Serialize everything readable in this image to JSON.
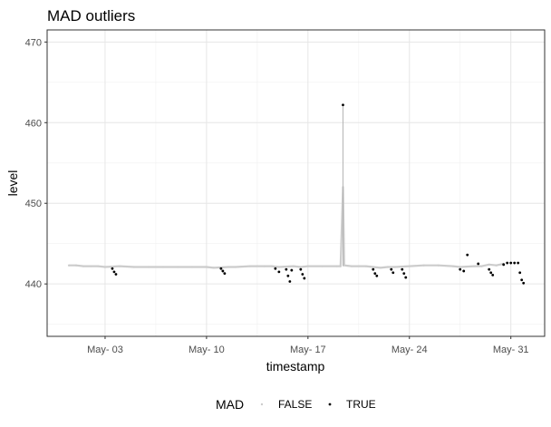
{
  "chart_data": {
    "type": "scatter",
    "title": "MAD outliers",
    "xlabel": "timestamp",
    "ylabel": "level",
    "x_domain": [
      "2019-04-29T00:00",
      "2019-06-02T08:00"
    ],
    "ylim": [
      433.5,
      471.5
    ],
    "x_ticks": [
      {
        "date": "2019-05-03",
        "label": "May- 03"
      },
      {
        "date": "2019-05-10",
        "label": "May- 10"
      },
      {
        "date": "2019-05-17",
        "label": "May- 17"
      },
      {
        "date": "2019-05-24",
        "label": "May- 24"
      },
      {
        "date": "2019-05-31",
        "label": "May- 31"
      }
    ],
    "y_ticks": [
      440,
      450,
      460,
      470
    ],
    "y_ticks_minor": [
      435,
      445,
      455,
      465
    ],
    "grid": true,
    "legend": {
      "title": "MAD",
      "position": "bottom",
      "items": [
        {
          "label": "FALSE",
          "color": "#cccccc"
        },
        {
          "label": "TRUE",
          "color": "#000000"
        }
      ]
    },
    "colors": {
      "FALSE": "#cccccc",
      "TRUE": "#000000"
    },
    "series": [
      {
        "name": "FALSE",
        "points": [
          [
            "2019-04-30T12:00",
            442.3
          ],
          [
            "2019-05-01T00:00",
            442.3
          ],
          [
            "2019-05-01T12:00",
            442.2
          ],
          [
            "2019-05-02T00:00",
            442.2
          ],
          [
            "2019-05-02T12:00",
            442.2
          ],
          [
            "2019-05-03T00:00",
            442.1
          ],
          [
            "2019-05-04T00:00",
            442.2
          ],
          [
            "2019-05-05T00:00",
            442.1
          ],
          [
            "2019-05-06T00:00",
            442.1
          ],
          [
            "2019-05-07T00:00",
            442.1
          ],
          [
            "2019-05-08T00:00",
            442.1
          ],
          [
            "2019-05-09T00:00",
            442.1
          ],
          [
            "2019-05-10T00:00",
            442.1
          ],
          [
            "2019-05-10T12:00",
            442.0
          ],
          [
            "2019-05-11T12:00",
            442.1
          ],
          [
            "2019-05-12T00:00",
            442.1
          ],
          [
            "2019-05-13T00:00",
            442.2
          ],
          [
            "2019-05-14T00:00",
            442.2
          ],
          [
            "2019-05-14T12:00",
            442.2
          ],
          [
            "2019-05-15T00:00",
            442.1
          ],
          [
            "2019-05-16T00:00",
            442.2
          ],
          [
            "2019-05-16T12:00",
            442.1
          ],
          [
            "2019-05-17T00:00",
            442.2
          ],
          [
            "2019-05-18T00:00",
            442.2
          ],
          [
            "2019-05-19T00:00",
            442.2
          ],
          [
            "2019-05-19T06:00",
            442.2
          ],
          [
            "2019-05-19T10:00",
            452.0
          ],
          [
            "2019-05-19T12:00",
            442.3
          ],
          [
            "2019-05-20T00:00",
            442.2
          ],
          [
            "2019-05-21T00:00",
            442.2
          ],
          [
            "2019-05-21T12:00",
            442.1
          ],
          [
            "2019-05-22T00:00",
            442.0
          ],
          [
            "2019-05-22T12:00",
            442.1
          ],
          [
            "2019-05-23T00:00",
            442.1
          ],
          [
            "2019-05-24T00:00",
            442.2
          ],
          [
            "2019-05-25T00:00",
            442.3
          ],
          [
            "2019-05-26T00:00",
            442.3
          ],
          [
            "2019-05-27T00:00",
            442.2
          ],
          [
            "2019-05-27T12:00",
            442.1
          ],
          [
            "2019-05-28T12:00",
            442.2
          ],
          [
            "2019-05-29T00:00",
            442.2
          ],
          [
            "2019-05-29T12:00",
            442.4
          ],
          [
            "2019-05-30T00:00",
            442.3
          ],
          [
            "2019-05-30T12:00",
            442.5
          ]
        ]
      },
      {
        "name": "TRUE",
        "points": [
          [
            "2019-05-03T12:00",
            441.9
          ],
          [
            "2019-05-03T15:00",
            441.5
          ],
          [
            "2019-05-03T18:00",
            441.2
          ],
          [
            "2019-05-11T00:00",
            441.9
          ],
          [
            "2019-05-11T03:00",
            441.6
          ],
          [
            "2019-05-11T06:00",
            441.3
          ],
          [
            "2019-05-14T18:00",
            441.9
          ],
          [
            "2019-05-15T00:00",
            441.5
          ],
          [
            "2019-05-15T12:00",
            441.8
          ],
          [
            "2019-05-15T15:00",
            441.0
          ],
          [
            "2019-05-15T18:00",
            440.3
          ],
          [
            "2019-05-15T21:00",
            441.7
          ],
          [
            "2019-05-16T12:00",
            441.8
          ],
          [
            "2019-05-16T15:00",
            441.2
          ],
          [
            "2019-05-16T18:00",
            440.7
          ],
          [
            "2019-05-19T10:00",
            462.2
          ],
          [
            "2019-05-21T12:00",
            441.8
          ],
          [
            "2019-05-21T15:00",
            441.3
          ],
          [
            "2019-05-21T18:00",
            441.0
          ],
          [
            "2019-05-22T18:00",
            441.8
          ],
          [
            "2019-05-22T21:00",
            441.4
          ],
          [
            "2019-05-23T12:00",
            441.8
          ],
          [
            "2019-05-23T15:00",
            441.3
          ],
          [
            "2019-05-23T18:00",
            440.8
          ],
          [
            "2019-05-27T12:00",
            441.8
          ],
          [
            "2019-05-27T18:00",
            441.6
          ],
          [
            "2019-05-28T00:00",
            443.6
          ],
          [
            "2019-05-28T18:00",
            442.5
          ],
          [
            "2019-05-29T12:00",
            441.8
          ],
          [
            "2019-05-29T15:00",
            441.4
          ],
          [
            "2019-05-29T18:00",
            441.1
          ],
          [
            "2019-05-30T12:00",
            442.4
          ],
          [
            "2019-05-30T18:00",
            442.6
          ],
          [
            "2019-05-31T00:00",
            442.6
          ],
          [
            "2019-05-31T06:00",
            442.6
          ],
          [
            "2019-05-31T12:00",
            442.6
          ],
          [
            "2019-05-31T15:00",
            441.4
          ],
          [
            "2019-05-31T18:00",
            440.5
          ],
          [
            "2019-05-31T21:00",
            440.1
          ]
        ]
      }
    ]
  }
}
